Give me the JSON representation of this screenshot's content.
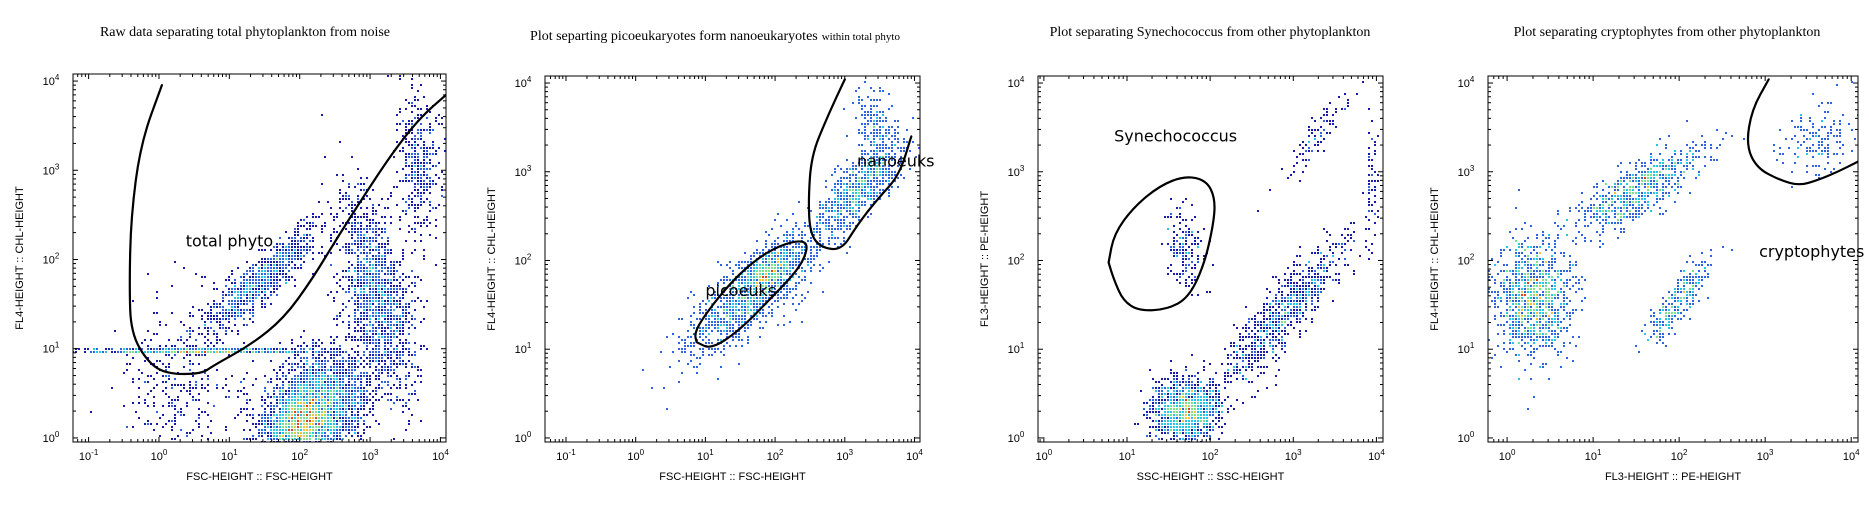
{
  "chart_data": [
    {
      "type": "scatter",
      "subtype": "flow-cytometry-density",
      "title": "Raw data separating total phytoplankton from noise",
      "xlabel": "FSC-HEIGHT :: FSC-HEIGHT",
      "ylabel": "FL4-HEIGHT :: CHL-HEIGHT",
      "xscale": "log",
      "yscale": "log",
      "xlim": [
        0.06,
        12000
      ],
      "ylim": [
        0.9,
        12000
      ],
      "xticks": [
        {
          "base": "10",
          "exp": "-1"
        },
        {
          "base": "10",
          "exp": "0"
        },
        {
          "base": "10",
          "exp": "1"
        },
        {
          "base": "10",
          "exp": "2"
        },
        {
          "base": "10",
          "exp": "3"
        },
        {
          "base": "10",
          "exp": "4"
        }
      ],
      "yticks": [
        {
          "base": "10",
          "exp": "0"
        },
        {
          "base": "10",
          "exp": "1"
        },
        {
          "base": "10",
          "exp": "2"
        },
        {
          "base": "10",
          "exp": "3"
        },
        {
          "base": "10",
          "exp": "4"
        }
      ],
      "gates": [
        {
          "label": "total phyto",
          "label_pos": [
            2.4,
            140
          ],
          "path": [
            [
              1.1,
              9000
            ],
            [
              0.55,
              2000
            ],
            [
              0.4,
              300
            ],
            [
              0.38,
              50
            ],
            [
              0.4,
              15
            ],
            [
              0.7,
              7
            ],
            [
              1.3,
              5.2
            ],
            [
              4,
              5.2
            ],
            [
              6,
              6.5
            ],
            [
              20,
              11
            ],
            [
              60,
              22
            ],
            [
              150,
              60
            ],
            [
              350,
              180
            ],
            [
              800,
              500
            ],
            [
              2000,
              1500
            ],
            [
              5000,
              3800
            ],
            [
              12000,
              7000
            ]
          ]
        }
      ],
      "clusters": [
        {
          "name": "noise-band",
          "cx": 0.6,
          "cy": 0.97,
          "sx": 0.9,
          "sy": 0.01,
          "n": 600,
          "angle": 0
        },
        {
          "name": "bulk",
          "cx": 2.2,
          "cy": 0.3,
          "sx": 0.42,
          "sy": 0.28,
          "n": 3200,
          "angle": 0.55
        },
        {
          "name": "dense-core",
          "cx": 2.0,
          "cy": 0.15,
          "sx": 0.25,
          "sy": 0.15,
          "n": 900,
          "angle": 0.5
        },
        {
          "name": "right-arm",
          "cx": 3.1,
          "cy": 1.6,
          "sx": 0.22,
          "sy": 0.55,
          "n": 1500,
          "angle": 0.25
        },
        {
          "name": "upper-right",
          "cx": 3.7,
          "cy": 3.1,
          "sx": 0.15,
          "sy": 0.4,
          "n": 380,
          "angle": 0.1
        },
        {
          "name": "diagonal-phyto",
          "cx": 1.45,
          "cy": 1.75,
          "sx": 0.5,
          "sy": 0.12,
          "n": 900,
          "angle": 0.62
        },
        {
          "name": "left-sparse",
          "cx": 0.3,
          "cy": 0.6,
          "sx": 0.45,
          "sy": 0.45,
          "n": 320,
          "angle": 0.2
        }
      ]
    },
    {
      "type": "scatter",
      "subtype": "flow-cytometry-density",
      "title": "Plot separting picoeukaryotes form nanoeukaryotes",
      "title_suffix": "within total phyto",
      "xlabel": "FSC-HEIGHT :: FSC-HEIGHT",
      "ylabel": "FL4-HEIGHT :: CHL-HEIGHT",
      "xscale": "log",
      "yscale": "log",
      "xlim": [
        0.05,
        12000
      ],
      "ylim": [
        0.9,
        12000
      ],
      "xticks": [
        {
          "base": "10",
          "exp": "-1"
        },
        {
          "base": "10",
          "exp": "0"
        },
        {
          "base": "10",
          "exp": "1"
        },
        {
          "base": "10",
          "exp": "2"
        },
        {
          "base": "10",
          "exp": "3"
        },
        {
          "base": "10",
          "exp": "4"
        }
      ],
      "yticks": [
        {
          "base": "10",
          "exp": "0"
        },
        {
          "base": "10",
          "exp": "1"
        },
        {
          "base": "10",
          "exp": "2"
        },
        {
          "base": "10",
          "exp": "3"
        },
        {
          "base": "10",
          "exp": "4"
        }
      ],
      "gates": [
        {
          "label": "picoeuks",
          "label_pos": [
            10,
            40
          ],
          "path": [
            [
              7.5,
              12
            ],
            [
              12,
              10
            ],
            [
              30,
              16
            ],
            [
              80,
              35
            ],
            [
              220,
              80
            ],
            [
              300,
              140
            ],
            [
              250,
              170
            ],
            [
              120,
              150
            ],
            [
              50,
              100
            ],
            [
              20,
              50
            ],
            [
              9,
              22
            ],
            [
              7,
              15
            ],
            [
              7.5,
              12
            ]
          ]
        },
        {
          "label": "nanoeuks",
          "label_pos": [
            1500,
            1150
          ],
          "path": [
            [
              1000,
              11000
            ],
            [
              550,
              4000
            ],
            [
              330,
              1500
            ],
            [
              300,
              450
            ],
            [
              320,
              200
            ],
            [
              450,
              140
            ],
            [
              900,
              130
            ],
            [
              1500,
              250
            ],
            [
              3000,
              500
            ],
            [
              6000,
              900
            ],
            [
              9000,
              2500
            ]
          ]
        }
      ],
      "clusters": [
        {
          "name": "pico",
          "cx": 1.7,
          "cy": 1.65,
          "sx": 0.55,
          "sy": 0.18,
          "n": 1400,
          "angle": 0.6
        },
        {
          "name": "pico-core",
          "cx": 1.95,
          "cy": 1.9,
          "sx": 0.18,
          "sy": 0.08,
          "n": 260,
          "angle": 0.6
        },
        {
          "name": "nano",
          "cx": 3.2,
          "cy": 2.8,
          "sx": 0.38,
          "sy": 0.14,
          "n": 750,
          "angle": 0.75
        },
        {
          "name": "nano-top",
          "cx": 3.45,
          "cy": 3.45,
          "sx": 0.12,
          "sy": 0.25,
          "n": 200,
          "angle": 0.2
        }
      ]
    },
    {
      "type": "scatter",
      "subtype": "flow-cytometry-density",
      "title": "Plot separating Synechococcus from other phytoplankton",
      "xlabel": "SSC-HEIGHT :: SSC-HEIGHT",
      "ylabel": "FL3-HEIGHT :: PE-HEIGHT",
      "xscale": "log",
      "yscale": "log",
      "xlim": [
        0.85,
        12000
      ],
      "ylim": [
        0.9,
        12000
      ],
      "xticks": [
        {
          "base": "10",
          "exp": "0"
        },
        {
          "base": "10",
          "exp": "1"
        },
        {
          "base": "10",
          "exp": "2"
        },
        {
          "base": "10",
          "exp": "3"
        },
        {
          "base": "10",
          "exp": "4"
        }
      ],
      "yticks": [
        {
          "base": "10",
          "exp": "0"
        },
        {
          "base": "10",
          "exp": "1"
        },
        {
          "base": "10",
          "exp": "2"
        },
        {
          "base": "10",
          "exp": "3"
        },
        {
          "base": "10",
          "exp": "4"
        }
      ],
      "gates": [
        {
          "label": "Synechococcus",
          "label_pos": [
            7,
            2200
          ],
          "path": [
            [
              6,
              95
            ],
            [
              7,
              60
            ],
            [
              9,
              35
            ],
            [
              14,
              27
            ],
            [
              30,
              28
            ],
            [
              55,
              38
            ],
            [
              85,
              90
            ],
            [
              110,
              260
            ],
            [
              115,
              500
            ],
            [
              90,
              800
            ],
            [
              50,
              900
            ],
            [
              25,
              700
            ],
            [
              12,
              400
            ],
            [
              7,
              200
            ],
            [
              6,
              95
            ]
          ]
        }
      ],
      "clusters": [
        {
          "name": "bottom-blob",
          "cx": 1.7,
          "cy": 0.3,
          "sx": 0.2,
          "sy": 0.18,
          "n": 1300,
          "angle": 0.3
        },
        {
          "name": "diagonal",
          "cx": 2.9,
          "cy": 1.4,
          "sx": 0.55,
          "sy": 0.14,
          "n": 800,
          "angle": 0.85
        },
        {
          "name": "syn",
          "cx": 1.7,
          "cy": 2.1,
          "sx": 0.12,
          "sy": 0.22,
          "n": 170,
          "angle": 0.1
        },
        {
          "name": "top-diag",
          "cx": 3.3,
          "cy": 3.4,
          "sx": 0.3,
          "sy": 0.08,
          "n": 90,
          "angle": 0.9
        },
        {
          "name": "right-edge",
          "cx": 3.95,
          "cy": 2.9,
          "sx": 0.04,
          "sy": 0.4,
          "n": 60,
          "angle": 0
        }
      ]
    },
    {
      "type": "scatter",
      "subtype": "flow-cytometry-density",
      "title": "Plot separating cryptophytes from other phytoplankton",
      "xlabel": "FL3-HEIGHT :: PE-HEIGHT",
      "ylabel": "FL4-HEIGHT :: CHL-HEIGHT",
      "xscale": "log",
      "yscale": "log",
      "xlim": [
        0.6,
        12000
      ],
      "ylim": [
        0.9,
        12000
      ],
      "xticks": [
        {
          "base": "10",
          "exp": "0"
        },
        {
          "base": "10",
          "exp": "1"
        },
        {
          "base": "10",
          "exp": "2"
        },
        {
          "base": "10",
          "exp": "3"
        },
        {
          "base": "10",
          "exp": "4"
        }
      ],
      "yticks": [
        {
          "base": "10",
          "exp": "0"
        },
        {
          "base": "10",
          "exp": "1"
        },
        {
          "base": "10",
          "exp": "2"
        },
        {
          "base": "10",
          "exp": "3"
        },
        {
          "base": "10",
          "exp": "4"
        }
      ],
      "gates": [
        {
          "label": "cryptophytes",
          "label_pos": [
            850,
            110
          ],
          "path": [
            [
              1100,
              11000
            ],
            [
              700,
              5000
            ],
            [
              600,
              2000
            ],
            [
              800,
              1100
            ],
            [
              1500,
              800
            ],
            [
              2500,
              700
            ],
            [
              4000,
              800
            ],
            [
              7000,
              1000
            ],
            [
              12000,
              1300
            ]
          ]
        }
      ],
      "clusters": [
        {
          "name": "left-blob",
          "cx": 0.3,
          "cy": 1.55,
          "sx": 0.22,
          "sy": 0.33,
          "n": 1050,
          "angle": 0
        },
        {
          "name": "diagonal",
          "cx": 1.55,
          "cy": 2.8,
          "sx": 0.45,
          "sy": 0.14,
          "n": 650,
          "angle": 0.55
        },
        {
          "name": "crypto",
          "cx": 2.0,
          "cy": 1.55,
          "sx": 0.28,
          "sy": 0.08,
          "n": 260,
          "angle": 0.95
        },
        {
          "name": "top-right",
          "cx": 3.6,
          "cy": 3.35,
          "sx": 0.25,
          "sy": 0.2,
          "n": 140,
          "angle": 0.5
        }
      ]
    }
  ],
  "colors": {
    "low": "#1a1aa8",
    "mid_low": "#2f63e0",
    "mid": "#27c5e6",
    "mid_high": "#7ee08a",
    "high": "#f5c23a",
    "peak": "#e0401a",
    "gate": "#000000"
  }
}
